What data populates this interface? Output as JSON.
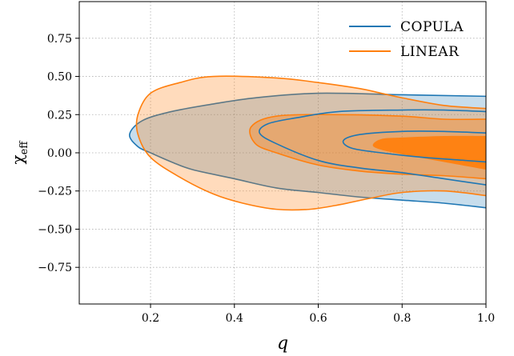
{
  "chart_data": {
    "type": "contour",
    "xlabel": "q",
    "ylabel": "χ",
    "ylabel_sub": "eff",
    "xlim": [
      0.03,
      1.0
    ],
    "ylim": [
      -0.99,
      0.99
    ],
    "xticks": [
      0.2,
      0.4,
      0.6,
      0.8,
      1.0
    ],
    "xtick_labels": [
      "0.2",
      "0.4",
      "0.6",
      "0.8",
      "1.0"
    ],
    "yticks": [
      -0.75,
      -0.5,
      -0.25,
      0.0,
      0.25,
      0.5,
      0.75
    ],
    "ytick_labels": [
      "−0.75",
      "−0.50",
      "−0.25",
      "0.00",
      "0.25",
      "0.50",
      "0.75"
    ],
    "grid": true,
    "legend": {
      "placement": "top-right"
    },
    "series": [
      {
        "name": "Copula",
        "display_name": "COPULA",
        "color": "#1f77b4",
        "contours": [
          {
            "level": "outer",
            "filled": true,
            "points": [
              [
                1.0,
                0.37
              ],
              [
                0.8,
                0.38
              ],
              [
                0.6,
                0.39
              ],
              [
                0.45,
                0.36
              ],
              [
                0.35,
                0.32
              ],
              [
                0.25,
                0.27
              ],
              [
                0.18,
                0.21
              ],
              [
                0.15,
                0.12
              ],
              [
                0.17,
                0.04
              ],
              [
                0.2,
                0.0
              ],
              [
                0.25,
                -0.06
              ],
              [
                0.3,
                -0.11
              ],
              [
                0.4,
                -0.17
              ],
              [
                0.5,
                -0.23
              ],
              [
                0.6,
                -0.26
              ],
              [
                0.7,
                -0.29
              ],
              [
                0.8,
                -0.31
              ],
              [
                0.9,
                -0.33
              ],
              [
                1.0,
                -0.36
              ]
            ]
          },
          {
            "level": "middle",
            "filled": false,
            "points": [
              [
                1.0,
                0.27
              ],
              [
                0.9,
                0.28
              ],
              [
                0.8,
                0.28
              ],
              [
                0.65,
                0.27
              ],
              [
                0.55,
                0.23
              ],
              [
                0.48,
                0.19
              ],
              [
                0.46,
                0.13
              ],
              [
                0.5,
                0.06
              ],
              [
                0.6,
                -0.05
              ],
              [
                0.7,
                -0.1
              ],
              [
                0.8,
                -0.13
              ],
              [
                0.9,
                -0.17
              ],
              [
                1.0,
                -0.21
              ]
            ]
          },
          {
            "level": "inner",
            "filled": false,
            "points": [
              [
                1.0,
                0.13
              ],
              [
                0.9,
                0.14
              ],
              [
                0.8,
                0.14
              ],
              [
                0.7,
                0.12
              ],
              [
                0.66,
                0.08
              ],
              [
                0.68,
                0.03
              ],
              [
                0.75,
                0.0
              ],
              [
                0.85,
                -0.03
              ],
              [
                0.95,
                -0.05
              ],
              [
                1.0,
                -0.06
              ]
            ]
          }
        ]
      },
      {
        "name": "Linear",
        "display_name": "LINEAR",
        "color": "#ff7f0e",
        "contours": [
          {
            "level": "outer",
            "filled": true,
            "points": [
              [
                1.0,
                0.29
              ],
              [
                0.9,
                0.31
              ],
              [
                0.8,
                0.36
              ],
              [
                0.75,
                0.39
              ],
              [
                0.7,
                0.42
              ],
              [
                0.6,
                0.46
              ],
              [
                0.5,
                0.49
              ],
              [
                0.35,
                0.5
              ],
              [
                0.27,
                0.46
              ],
              [
                0.2,
                0.39
              ],
              [
                0.17,
                0.25
              ],
              [
                0.17,
                0.12
              ],
              [
                0.2,
                -0.03
              ],
              [
                0.27,
                -0.16
              ],
              [
                0.35,
                -0.27
              ],
              [
                0.42,
                -0.33
              ],
              [
                0.5,
                -0.37
              ],
              [
                0.58,
                -0.37
              ],
              [
                0.65,
                -0.34
              ],
              [
                0.72,
                -0.3
              ],
              [
                0.8,
                -0.26
              ],
              [
                0.9,
                -0.25
              ],
              [
                1.0,
                -0.28
              ]
            ]
          },
          {
            "level": "middle",
            "filled": true,
            "points": [
              [
                1.0,
                0.22
              ],
              [
                0.9,
                0.22
              ],
              [
                0.8,
                0.24
              ],
              [
                0.65,
                0.25
              ],
              [
                0.5,
                0.24
              ],
              [
                0.44,
                0.17
              ],
              [
                0.45,
                0.06
              ],
              [
                0.5,
                0.0
              ],
              [
                0.6,
                -0.08
              ],
              [
                0.7,
                -0.12
              ],
              [
                0.8,
                -0.14
              ],
              [
                0.9,
                -0.15
              ],
              [
                1.0,
                -0.17
              ]
            ]
          },
          {
            "level": "inner",
            "filled": true,
            "points": [
              [
                1.0,
                0.11
              ],
              [
                0.9,
                0.11
              ],
              [
                0.8,
                0.1
              ],
              [
                0.75,
                0.09
              ],
              [
                0.73,
                0.05
              ],
              [
                0.75,
                0.02
              ],
              [
                0.8,
                -0.01
              ],
              [
                0.9,
                -0.06
              ],
              [
                1.0,
                -0.11
              ]
            ]
          }
        ]
      }
    ]
  }
}
